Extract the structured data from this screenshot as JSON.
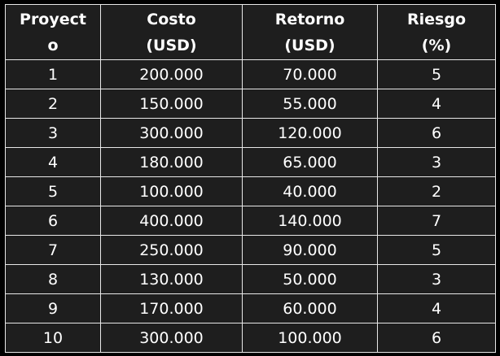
{
  "headers": [
    {
      "line1": "Proyect",
      "line2": "o"
    },
    {
      "line1": "Costo",
      "line2": "(USD)"
    },
    {
      "line1": "Retorno",
      "line2": "(USD)"
    },
    {
      "line1": "Riesgo",
      "line2": "(%)"
    }
  ],
  "rows": [
    [
      "1",
      "200.000",
      "70.000",
      "5"
    ],
    [
      "2",
      "150.000",
      "55.000",
      "4"
    ],
    [
      "3",
      "300.000",
      "120.000",
      "6"
    ],
    [
      "4",
      "180.000",
      "65.000",
      "3"
    ],
    [
      "5",
      "100.000",
      "40.000",
      "2"
    ],
    [
      "6",
      "400.000",
      "140.000",
      "7"
    ],
    [
      "7",
      "250.000",
      "90.000",
      "5"
    ],
    [
      "8",
      "130.000",
      "50.000",
      "3"
    ],
    [
      "9",
      "170.000",
      "60.000",
      "4"
    ],
    [
      "10",
      "300.000",
      "100.000",
      "6"
    ]
  ],
  "colors": {
    "page_background": "#000000",
    "table_background": "#1e1e1e",
    "grid_lines": "#e8e8e8",
    "text": "#ffffff"
  }
}
